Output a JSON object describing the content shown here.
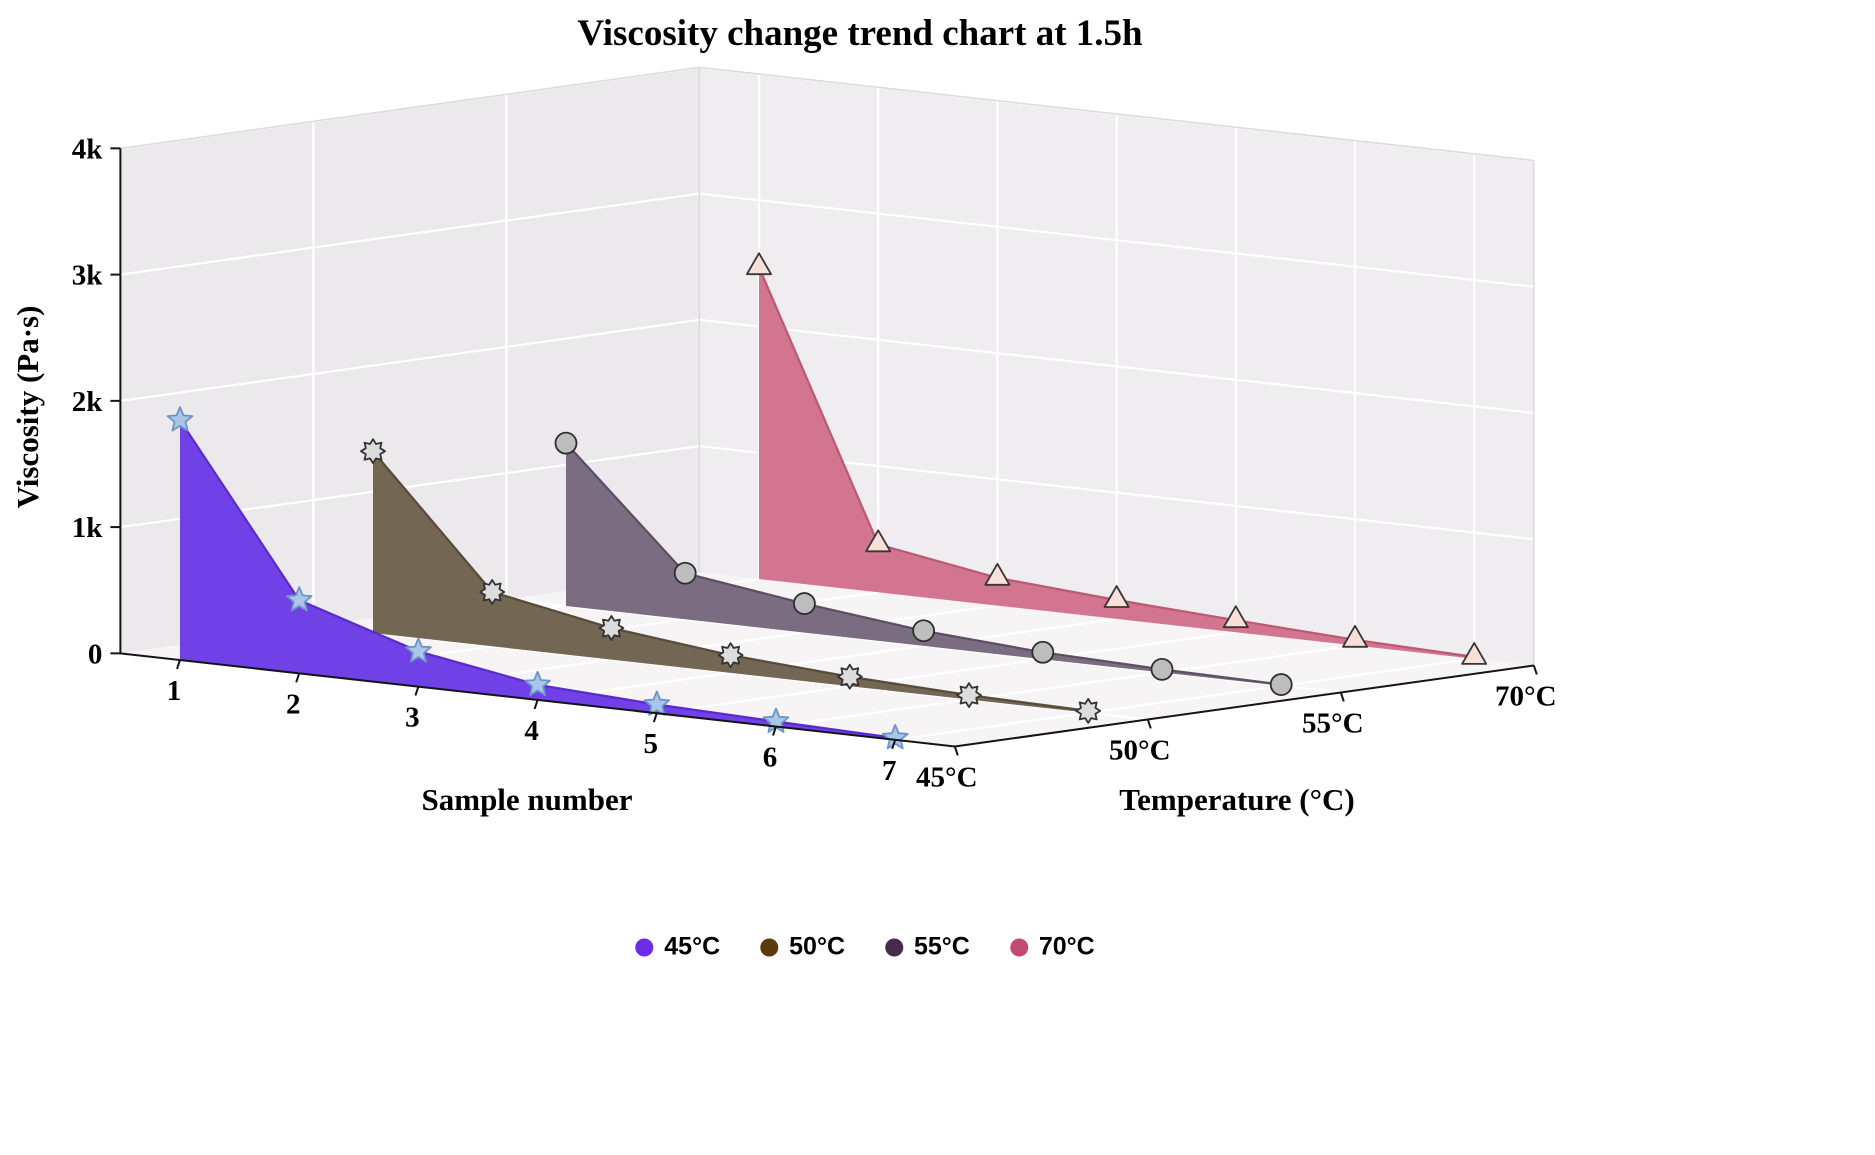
{
  "title": "Viscosity change trend chart at 1.5h",
  "chart_data": {
    "type": "area",
    "projection": "3d-ribbon",
    "title": "Viscosity change trend chart at 1.5h",
    "xlabel": "Sample number",
    "ylabel": "Viscosity (Pa·s)",
    "zlabel": "Temperature (°C)",
    "x": [
      1,
      2,
      3,
      4,
      5,
      6,
      7
    ],
    "x_tick_labels": [
      "1",
      "2",
      "3",
      "4",
      "5",
      "6",
      "7"
    ],
    "y_tick_labels": [
      "0",
      "1k",
      "2k",
      "3k",
      "4k"
    ],
    "y_tick_values": [
      0,
      1000,
      2000,
      3000,
      4000
    ],
    "ylim": [
      0,
      4000
    ],
    "z_tick_labels": [
      "45°C",
      "50°C",
      "55°C",
      "70°C"
    ],
    "grid": true,
    "legend_position": "bottom",
    "series": [
      {
        "name": "45°C",
        "temp_index": 0,
        "marker": "star",
        "fill": "#6B3BE6",
        "line": "#5526C8",
        "marker_fill": "#A9C6E8",
        "marker_stroke": "#6E93C8",
        "values": [
          1900,
          580,
          280,
          120,
          70,
          40,
          15
        ]
      },
      {
        "name": "50°C",
        "temp_index": 1,
        "marker": "octagram",
        "fill": "#6E614C",
        "line": "#544736",
        "marker_fill": "#DCDCDC",
        "marker_stroke": "#333333",
        "values": [
          1440,
          430,
          250,
          140,
          75,
          35,
          15
        ]
      },
      {
        "name": "55°C",
        "temp_index": 2,
        "marker": "circle",
        "fill": "#77687D",
        "line": "#584A5E",
        "marker_fill": "#BDBDBD",
        "marker_stroke": "#2E2E2E",
        "values": [
          1290,
          365,
          230,
          120,
          55,
          25,
          10
        ]
      },
      {
        "name": "70°C",
        "temp_index": 3,
        "marker": "triangle",
        "fill": "#D2718C",
        "line": "#B85570",
        "marker_fill": "#F6E0D8",
        "marker_stroke": "#3A3434",
        "values": [
          2470,
          380,
          220,
          150,
          95,
          45,
          15
        ]
      }
    ],
    "legend": [
      {
        "label": "45°C",
        "color": "#6C2BE8"
      },
      {
        "label": "50°C",
        "color": "#5C3A10"
      },
      {
        "label": "55°C",
        "color": "#472B4D"
      },
      {
        "label": "70°C",
        "color": "#C04A73"
      }
    ],
    "colors": {
      "wall_left": "#ECE9EC",
      "wall_back": "#F0EDF0",
      "floor": "#F7F4F5",
      "grid": "#FFFFFF",
      "wall_edge": "#DCD8DC",
      "axis": "#141414",
      "tick_text": "#000000"
    }
  }
}
